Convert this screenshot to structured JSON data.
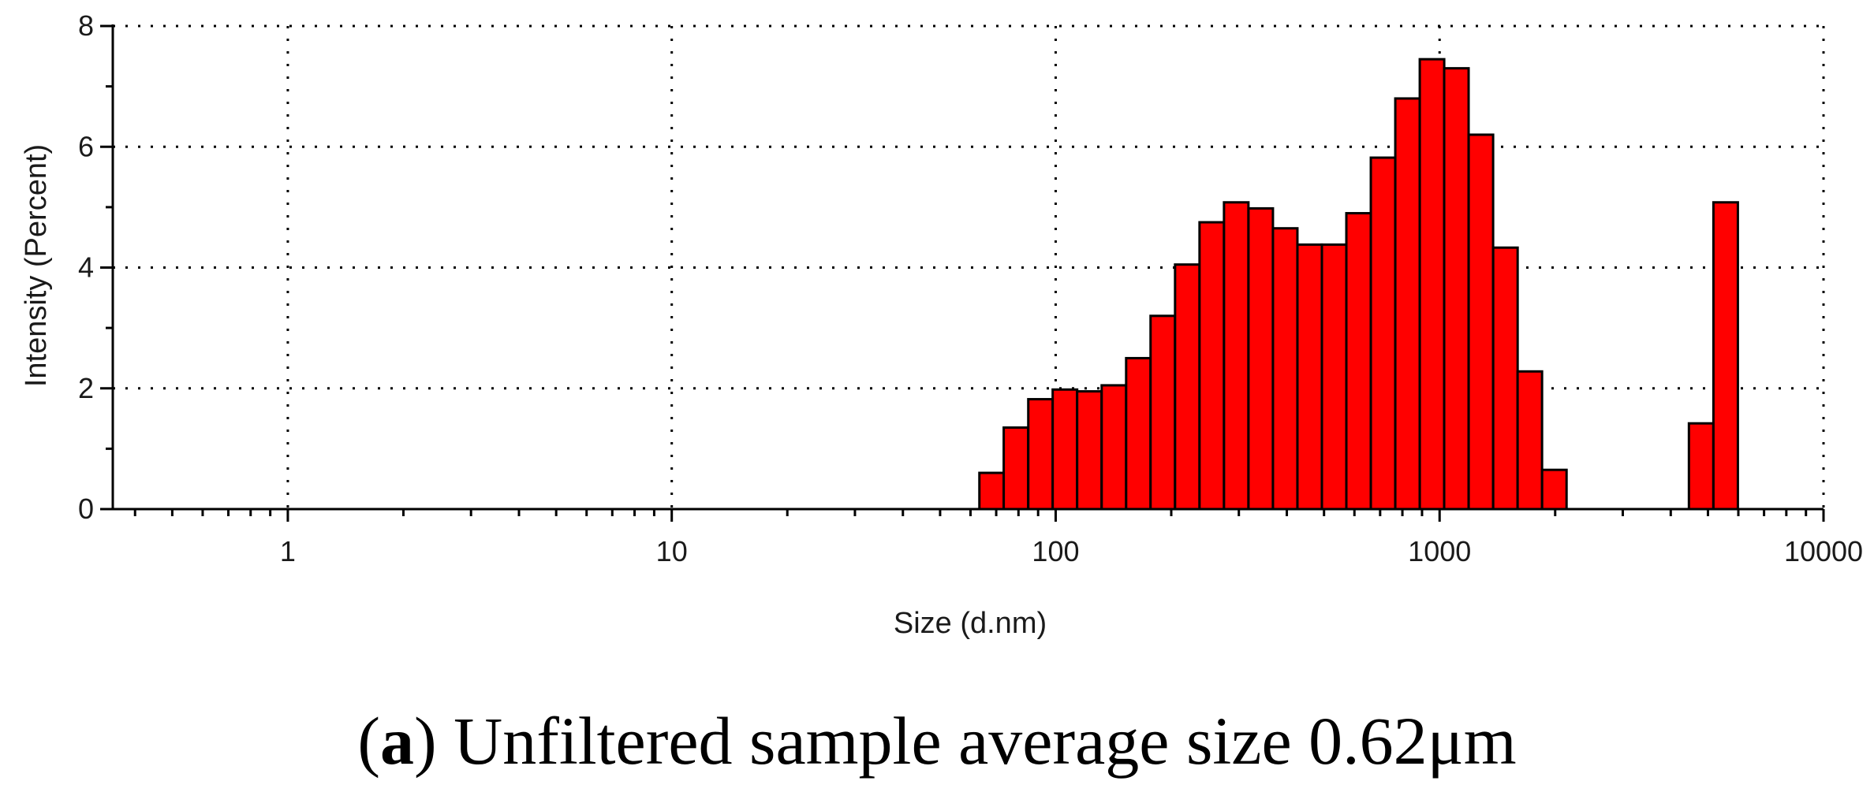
{
  "chart_data": {
    "type": "bar",
    "xlabel": "Size (d.nm)",
    "ylabel": "Intensity (Percent)",
    "x_scale": "log",
    "xlim": [
      0.35,
      10000
    ],
    "ylim": [
      0,
      8
    ],
    "x_ticks": [
      "1",
      "10",
      "100",
      "1000",
      "10000"
    ],
    "y_ticks": [
      "0",
      "2",
      "4",
      "6",
      "8"
    ],
    "grid": true,
    "bar_color": "#ff0000",
    "bars": [
      {
        "x": 68.1,
        "y": 0.6
      },
      {
        "x": 78.8,
        "y": 1.35
      },
      {
        "x": 91.3,
        "y": 1.82
      },
      {
        "x": 105.7,
        "y": 1.98
      },
      {
        "x": 122.4,
        "y": 1.95
      },
      {
        "x": 141.8,
        "y": 2.05
      },
      {
        "x": 164.2,
        "y": 2.5
      },
      {
        "x": 190.1,
        "y": 3.2
      },
      {
        "x": 220.2,
        "y": 4.05
      },
      {
        "x": 255.0,
        "y": 4.75
      },
      {
        "x": 295.3,
        "y": 5.08
      },
      {
        "x": 342.0,
        "y": 4.98
      },
      {
        "x": 396.1,
        "y": 4.65
      },
      {
        "x": 458.7,
        "y": 4.38
      },
      {
        "x": 531.2,
        "y": 4.38
      },
      {
        "x": 615.1,
        "y": 4.9
      },
      {
        "x": 712.4,
        "y": 5.82
      },
      {
        "x": 825.0,
        "y": 6.8
      },
      {
        "x": 955.4,
        "y": 7.45
      },
      {
        "x": 1106.0,
        "y": 7.3
      },
      {
        "x": 1281.0,
        "y": 6.2
      },
      {
        "x": 1484.0,
        "y": 4.33
      },
      {
        "x": 1718.0,
        "y": 2.28
      },
      {
        "x": 1990.0,
        "y": 0.65
      },
      {
        "x": 4800.0,
        "y": 1.42
      },
      {
        "x": 5560.0,
        "y": 5.08
      }
    ]
  },
  "caption": {
    "open_paren": "(",
    "letter": "a",
    "text": ") Unfiltered sample average size 0.62μm"
  }
}
